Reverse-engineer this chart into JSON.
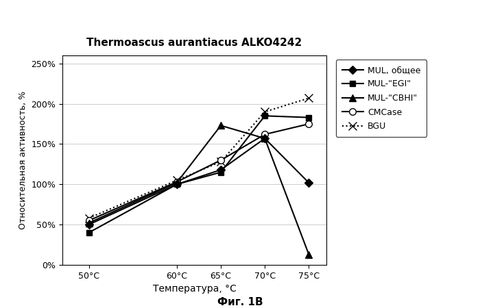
{
  "title": "Thermoascus aurantiacus ALKO4242",
  "xlabel": "Температура, °C",
  "ylabel": "Относительная активность, %",
  "caption": "Фиг. 1B",
  "x_values": [
    50,
    60,
    65,
    70,
    75
  ],
  "x_labels": [
    "50°C",
    "60°C",
    "65°C",
    "70°C",
    "75°C"
  ],
  "series": [
    {
      "label": "MUL, общее",
      "values": [
        50,
        100,
        118,
        157,
        102
      ],
      "color": "#000000",
      "marker": "D",
      "markersize": 6,
      "linestyle": "-",
      "linewidth": 1.5,
      "markerfacecolor": "#000000",
      "zorder": 5
    },
    {
      "label": "MUL-\"EGI\"",
      "values": [
        40,
        100,
        115,
        185,
        183
      ],
      "color": "#000000",
      "marker": "s",
      "markersize": 6,
      "linestyle": "-",
      "linewidth": 1.5,
      "markerfacecolor": "#000000",
      "zorder": 4
    },
    {
      "label": "MUL-\"CBHI\"",
      "values": [
        52,
        102,
        173,
        157,
        13
      ],
      "color": "#000000",
      "marker": "^",
      "markersize": 7,
      "linestyle": "-",
      "linewidth": 1.5,
      "markerfacecolor": "#000000",
      "zorder": 3
    },
    {
      "label": "CMCase",
      "values": [
        55,
        103,
        130,
        162,
        175
      ],
      "color": "#000000",
      "marker": "o",
      "markersize": 7,
      "linestyle": "-",
      "linewidth": 1.5,
      "markerfacecolor": "white",
      "zorder": 2
    },
    {
      "label": "BGU",
      "values": [
        58,
        105,
        128,
        190,
        207
      ],
      "color": "#000000",
      "marker": "x",
      "markersize": 8,
      "linestyle": ":",
      "linewidth": 1.5,
      "markerfacecolor": "#000000",
      "zorder": 1
    }
  ],
  "ylim": [
    0,
    260
  ],
  "yticks": [
    0,
    50,
    100,
    150,
    200,
    250
  ],
  "ytick_labels": [
    "0%",
    "50%",
    "100%",
    "150%",
    "200%",
    "250%"
  ],
  "background_color": "#ffffff",
  "grid_color": "#cccccc"
}
